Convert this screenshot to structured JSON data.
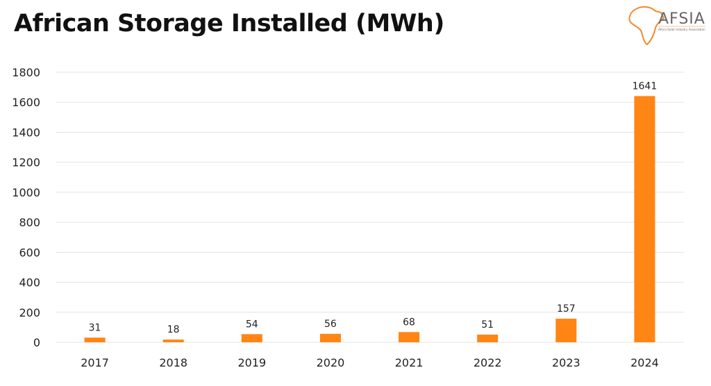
{
  "logo": {
    "name": "AFSIA",
    "subtitle": "Africa Solar Industry Association"
  },
  "colors": {
    "bar": "#FF8514",
    "grid": "#e3e3e3",
    "logo_accent": "#F08A2C"
  },
  "chart_data": {
    "type": "bar",
    "title": "African Storage Installed (MWh)",
    "categories": [
      "2017",
      "2018",
      "2019",
      "2020",
      "2021",
      "2022",
      "2023",
      "2024"
    ],
    "values": [
      31,
      18,
      54,
      56,
      68,
      51,
      157,
      1641
    ],
    "data_labels": [
      "31",
      "18",
      "54",
      "56",
      "68",
      "51",
      "157",
      "1641"
    ],
    "xlabel": "",
    "ylabel": "",
    "ylim": [
      0,
      1800
    ],
    "yticks": [
      "0",
      "200",
      "400",
      "600",
      "800",
      "1000",
      "1200",
      "1400",
      "1600",
      "1800"
    ],
    "grid": true,
    "legend": "none"
  }
}
